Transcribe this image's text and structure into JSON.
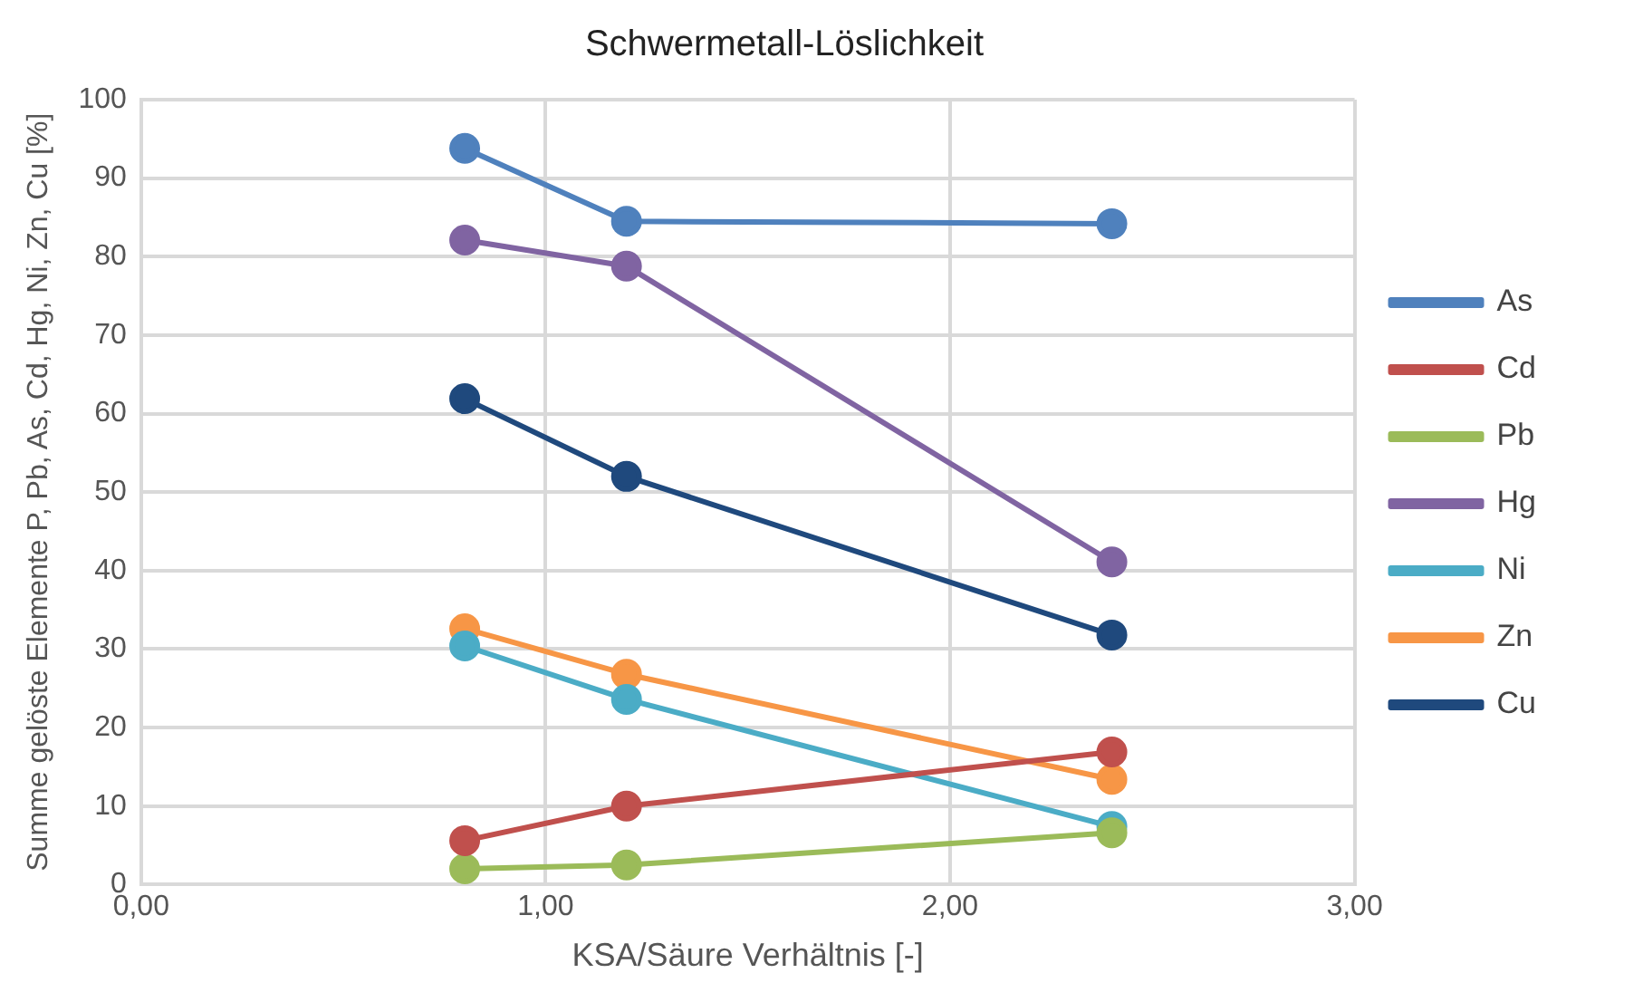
{
  "chart_data": {
    "type": "line",
    "title": "Schwermetall-Löslichkeit",
    "xlabel": "KSA/Säure Verhältnis [-]",
    "ylabel": "Summe gelöste Elemente P, Pb, As, Cd, Hg, Ni, Zn, Cu [%]",
    "x": [
      0.8,
      1.2,
      2.4
    ],
    "series": [
      {
        "name": "As",
        "color": "#4f81bd",
        "values": [
          93.8,
          84.5,
          84.2
        ]
      },
      {
        "name": "Cd",
        "color": "#c0504d",
        "values": [
          5.6,
          10,
          16.9
        ]
      },
      {
        "name": "Pb",
        "color": "#9bbb59",
        "values": [
          2,
          2.5,
          6.6
        ]
      },
      {
        "name": "Hg",
        "color": "#8064a2",
        "values": [
          82.1,
          78.8,
          41.1
        ]
      },
      {
        "name": "Ni",
        "color": "#4bacc6",
        "values": [
          30.4,
          23.6,
          7.4
        ]
      },
      {
        "name": "Zn",
        "color": "#f79646",
        "values": [
          32.6,
          26.8,
          13.4
        ]
      },
      {
        "name": "Cu",
        "color": "#1f497d",
        "values": [
          61.9,
          52,
          31.8
        ]
      }
    ],
    "xlim": [
      0,
      3
    ],
    "xticks": [
      {
        "value": 0,
        "label": "0,00"
      },
      {
        "value": 1,
        "label": "1,00"
      },
      {
        "value": 2,
        "label": "2,00"
      },
      {
        "value": 3,
        "label": "3,00"
      }
    ],
    "ylim": [
      0,
      100
    ],
    "yticks": [
      0,
      10,
      20,
      30,
      40,
      50,
      60,
      70,
      80,
      90,
      100
    ],
    "grid": true,
    "legend": "right",
    "marker": "circle",
    "line_style": "solid"
  }
}
